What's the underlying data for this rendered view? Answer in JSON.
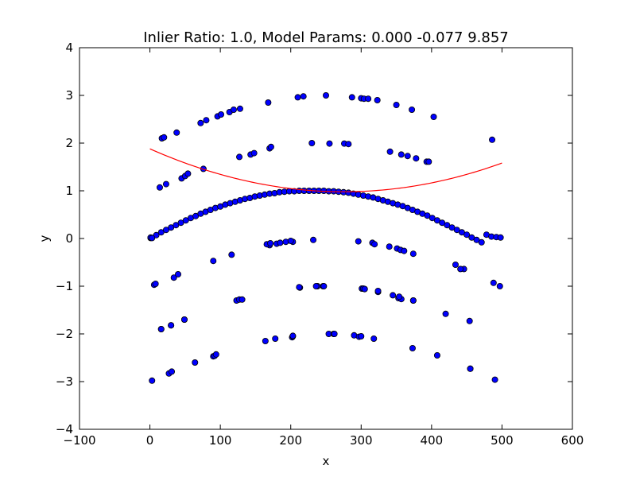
{
  "chart_data": {
    "type": "scatter",
    "title": "Inlier Ratio: 1.0, Model Params: 0.000 -0.077 9.857",
    "xlabel": "x",
    "ylabel": "y",
    "xlim": [
      -100,
      600
    ],
    "ylim": [
      -4,
      4
    ],
    "xticks": [
      "−100",
      "0",
      "100",
      "200",
      "300",
      "400",
      "500",
      "600"
    ],
    "yticks": [
      "4",
      "3",
      "2",
      "1",
      "0",
      "−1",
      "−2",
      "−3",
      "−4"
    ],
    "grid": false,
    "colors": {
      "points": "#0000ff",
      "fit_line": "#ff0000"
    },
    "series": [
      {
        "kind": "points",
        "x": [
          1,
          9,
          16,
          23,
          30,
          37,
          44,
          51,
          58,
          65,
          72,
          79,
          86,
          93,
          100,
          107,
          114,
          121,
          128,
          135,
          142,
          149,
          156,
          163,
          170,
          177,
          184,
          191,
          198,
          205,
          212,
          219,
          226,
          233,
          240,
          247,
          254,
          261,
          268,
          275,
          282,
          289,
          296,
          303,
          310,
          317,
          324,
          331,
          338,
          345,
          352,
          359,
          366,
          373,
          380,
          387,
          394,
          401,
          408,
          415,
          422,
          429,
          436,
          443,
          450,
          457,
          464,
          471,
          478,
          485,
          492,
          498,
          17,
          20,
          38,
          72,
          80,
          96,
          101,
          113,
          119,
          128,
          168,
          210,
          218,
          250,
          287,
          300,
          304,
          310,
          323,
          350,
          372,
          403,
          486,
          14,
          23,
          45,
          50,
          54,
          76,
          127,
          143,
          148,
          170,
          172,
          230,
          255,
          276,
          282,
          341,
          357,
          366,
          378,
          393,
          396,
          1,
          3,
          170,
          180,
          203,
          232,
          296,
          316,
          319,
          340,
          351,
          356,
          374,
          361,
          6,
          8,
          34,
          40,
          90,
          116,
          166,
          171,
          185,
          193,
          200,
          213,
          238,
          246,
          301,
          305,
          324,
          345,
          353,
          357,
          374,
          434,
          446,
          16,
          30,
          49,
          123,
          127,
          212,
          236,
          247,
          303,
          305,
          324,
          354,
          374,
          408,
          420,
          454,
          488,
          497,
          16,
          30,
          49,
          90,
          131,
          178,
          202,
          203,
          254,
          261,
          290,
          297,
          318,
          373,
          441,
          455,
          3,
          27,
          31,
          64,
          92,
          94,
          164,
          203,
          262,
          300,
          455,
          490
        ],
        "y": [
          0.01,
          0.07,
          0.13,
          0.18,
          0.23,
          0.28,
          0.33,
          0.38,
          0.43,
          0.47,
          0.52,
          0.56,
          0.6,
          0.64,
          0.67,
          0.71,
          0.74,
          0.77,
          0.8,
          0.83,
          0.85,
          0.88,
          0.9,
          0.92,
          0.94,
          0.95,
          0.97,
          0.98,
          0.99,
          0.99,
          1.0,
          1.0,
          1.0,
          1.0,
          1.0,
          1.0,
          0.99,
          0.99,
          0.98,
          0.97,
          0.96,
          0.94,
          0.92,
          0.9,
          0.88,
          0.86,
          0.83,
          0.8,
          0.77,
          0.74,
          0.71,
          0.68,
          0.64,
          0.6,
          0.56,
          0.52,
          0.48,
          0.43,
          0.38,
          0.33,
          0.28,
          0.23,
          0.18,
          0.13,
          0.08,
          0.02,
          -0.03,
          -0.08,
          0.08,
          0.04,
          0.03,
          0.02,
          2.1,
          2.12,
          2.22,
          2.42,
          2.48,
          2.56,
          2.6,
          2.65,
          2.7,
          2.72,
          2.85,
          2.96,
          2.98,
          3.0,
          2.96,
          2.94,
          2.93,
          2.93,
          2.9,
          2.8,
          2.7,
          2.55,
          2.07,
          1.07,
          1.14,
          1.26,
          1.31,
          1.36,
          1.46,
          1.71,
          1.76,
          1.79,
          1.89,
          1.92,
          2.0,
          1.99,
          1.99,
          1.98,
          1.82,
          1.76,
          1.73,
          1.68,
          1.61,
          1.61,
          0.02,
          0.01,
          -0.14,
          -0.11,
          -0.07,
          -0.03,
          -0.06,
          -0.09,
          -0.12,
          -0.17,
          -0.21,
          -0.24,
          -0.32,
          -0.26,
          -0.97,
          -0.95,
          -0.82,
          -0.75,
          -0.47,
          -0.34,
          -0.12,
          -0.1,
          -0.09,
          -0.07,
          -0.05,
          -1.03,
          -1.0,
          -1.0,
          -1.05,
          -1.06,
          -1.12,
          -1.19,
          -1.25,
          -1.27,
          -1.3,
          -0.55,
          -0.64,
          -1.9,
          -1.82,
          -1.7,
          -1.3,
          -1.28,
          -1.02,
          -1.0,
          -1.0,
          -1.05,
          -1.06,
          -1.1,
          -1.22,
          -1.3,
          -2.45,
          -1.58,
          -1.73,
          -0.93,
          -1.0,
          -1.9,
          -1.82,
          -1.7,
          -2.47,
          -1.28,
          -2.1,
          -2.07,
          -2.05,
          -2.0,
          -2.0,
          -2.03,
          -2.06,
          -2.1,
          -2.3,
          -0.64,
          -2.73,
          -2.98,
          -2.83,
          -2.79,
          -2.6,
          -2.46,
          -2.43,
          -2.15,
          -2.04,
          -2.0,
          -2.05,
          -2.73,
          -2.96
        ]
      },
      {
        "kind": "line",
        "equation": "y = 0.000*x^2 - 0.077*x + 9.857 (scaled)",
        "x_range": [
          0,
          500
        ],
        "vertex_x": 275,
        "vertex_y": 0.98,
        "y_at_0": 1.88,
        "y_at_500": 1.48
      }
    ]
  }
}
